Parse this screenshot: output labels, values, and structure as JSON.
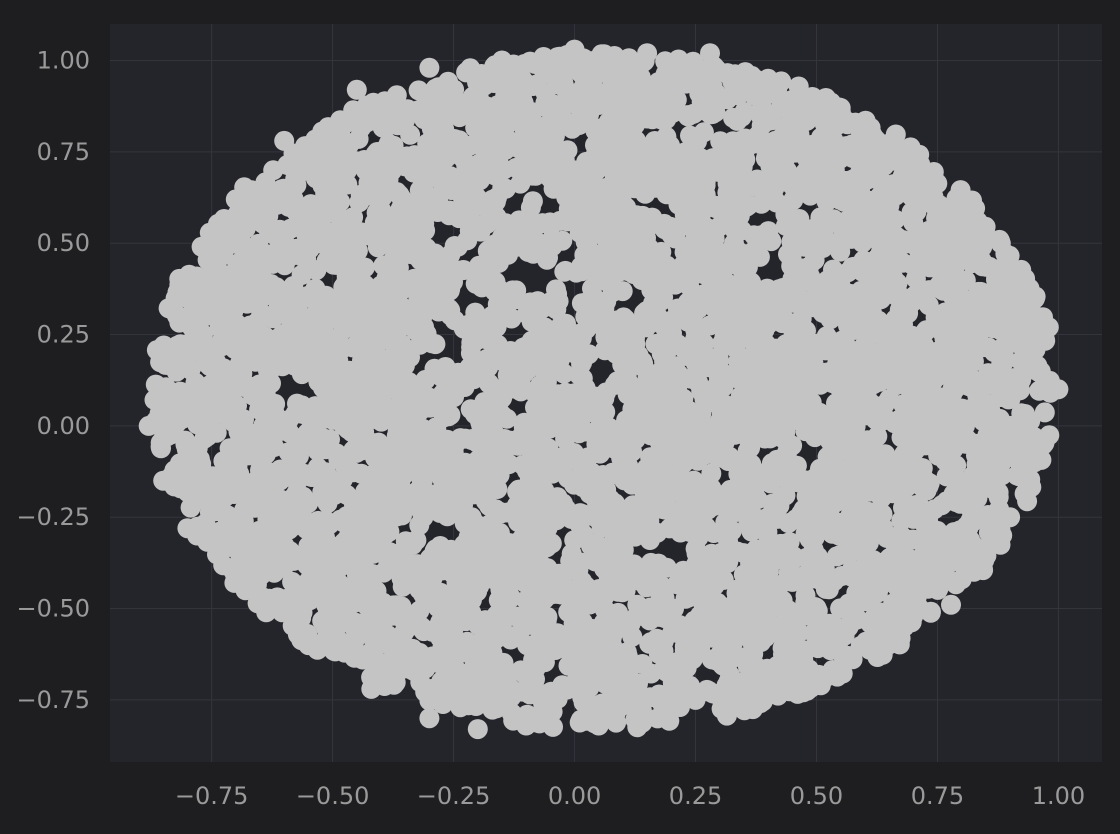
{
  "chart_data": {
    "type": "scatter",
    "title": "",
    "xlabel": "",
    "ylabel": "",
    "xlim": [
      -0.96,
      1.09
    ],
    "ylim": [
      -0.92,
      1.1
    ],
    "grid": true,
    "legend": "none",
    "x_ticks": [
      {
        "value": -0.75,
        "label": "−0.75"
      },
      {
        "value": -0.5,
        "label": "−0.50"
      },
      {
        "value": -0.25,
        "label": "−0.25"
      },
      {
        "value": 0.0,
        "label": "0.00"
      },
      {
        "value": 0.25,
        "label": "0.25"
      },
      {
        "value": 0.5,
        "label": "0.50"
      },
      {
        "value": 0.75,
        "label": "0.75"
      },
      {
        "value": 1.0,
        "label": "1.00"
      }
    ],
    "y_ticks": [
      {
        "value": 1.0,
        "label": "1.00"
      },
      {
        "value": 0.75,
        "label": "0.75"
      },
      {
        "value": 0.5,
        "label": "0.50"
      },
      {
        "value": 0.25,
        "label": "0.25"
      },
      {
        "value": 0.0,
        "label": "0.00"
      },
      {
        "value": -0.25,
        "label": "−0.25"
      },
      {
        "value": -0.5,
        "label": "−0.50"
      },
      {
        "value": -0.75,
        "label": "−0.75"
      }
    ],
    "series": [
      {
        "color": "#c4c4c4",
        "approx_point_count": 10000,
        "shape": "dense roughly elliptical cloud",
        "x": [
          -0.88,
          -0.8,
          -0.82,
          -0.7,
          -0.6,
          -0.45,
          -0.3,
          -0.15,
          0.0,
          0.15,
          0.28,
          0.4,
          0.55,
          0.68,
          0.8,
          0.92,
          1.0,
          0.98,
          0.95,
          0.9,
          0.8,
          0.7,
          0.55,
          0.4,
          0.25,
          0.05,
          -0.1,
          -0.2,
          -0.3,
          -0.42,
          -0.55,
          -0.68,
          -0.78,
          -0.85
        ],
        "y": [
          0.0,
          -0.28,
          0.35,
          0.62,
          0.78,
          0.92,
          0.98,
          1.0,
          1.03,
          1.02,
          1.02,
          0.95,
          0.87,
          0.75,
          0.6,
          0.35,
          0.1,
          0.27,
          -0.1,
          -0.25,
          -0.42,
          -0.52,
          -0.62,
          -0.7,
          -0.75,
          -0.82,
          -0.82,
          -0.83,
          -0.8,
          -0.72,
          -0.6,
          -0.45,
          -0.3,
          -0.15
        ],
        "holes": [
          {
            "x": -0.27,
            "y": 0.54
          },
          {
            "x": -0.22,
            "y": 0.35
          },
          {
            "x": -0.25,
            "y": 0.2
          },
          {
            "x": -0.12,
            "y": 0.25
          },
          {
            "x": -0.08,
            "y": 0.4
          },
          {
            "x": -0.05,
            "y": 0.6
          },
          {
            "x": 0.0,
            "y": 0.38
          },
          {
            "x": 0.13,
            "y": 0.35
          },
          {
            "x": 0.18,
            "y": 0.6
          },
          {
            "x": 0.3,
            "y": 0.82
          },
          {
            "x": 0.38,
            "y": 0.57
          },
          {
            "x": 0.4,
            "y": 0.43
          },
          {
            "x": -0.12,
            "y": 0.05
          },
          {
            "x": 0.05,
            "y": 0.15
          },
          {
            "x": 0.48,
            "y": -0.08
          },
          {
            "x": 0.2,
            "y": -0.33
          },
          {
            "x": 0.28,
            "y": -0.68
          },
          {
            "x": -0.58,
            "y": 0.1
          }
        ]
      }
    ]
  }
}
